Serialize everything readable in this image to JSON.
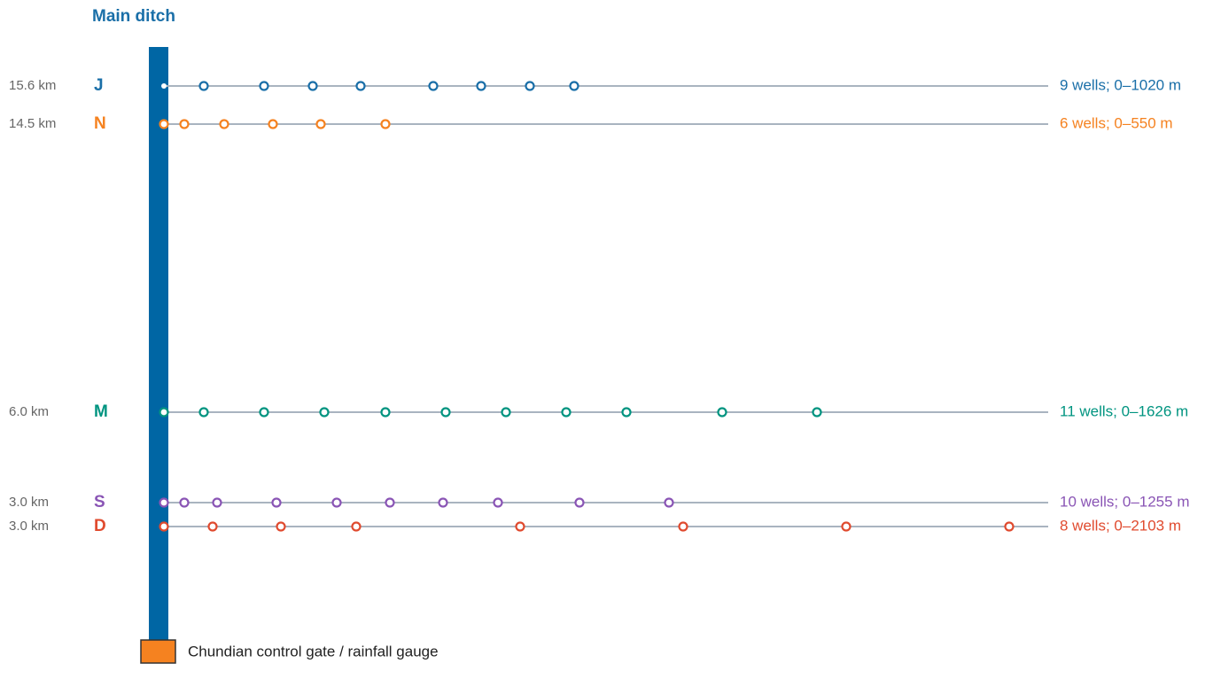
{
  "title": "Main ditch",
  "rows": [
    {
      "distance": "15.6 km",
      "label": "J",
      "summary": "9 wells; 0–1020 m",
      "color": "#1a6fa8"
    },
    {
      "distance": "14.5 km",
      "label": "N",
      "summary": "6 wells; 0–550 m",
      "color": "#f58220"
    },
    {
      "distance": "6.0 km",
      "label": "M",
      "summary": "11 wells; 0–1626 m",
      "color": "#009480"
    },
    {
      "distance": "3.0 km",
      "label": "S",
      "summary": "10 wells; 0–1255 m",
      "color": "#8a55b5"
    },
    {
      "distance": "3.0 km",
      "label": "D",
      "summary": "8 wells; 0–2103 m",
      "color": "#e04b2f"
    }
  ],
  "legend": {
    "label": "Chundian control gate / rainfall gauge",
    "color": "#f58220"
  }
}
